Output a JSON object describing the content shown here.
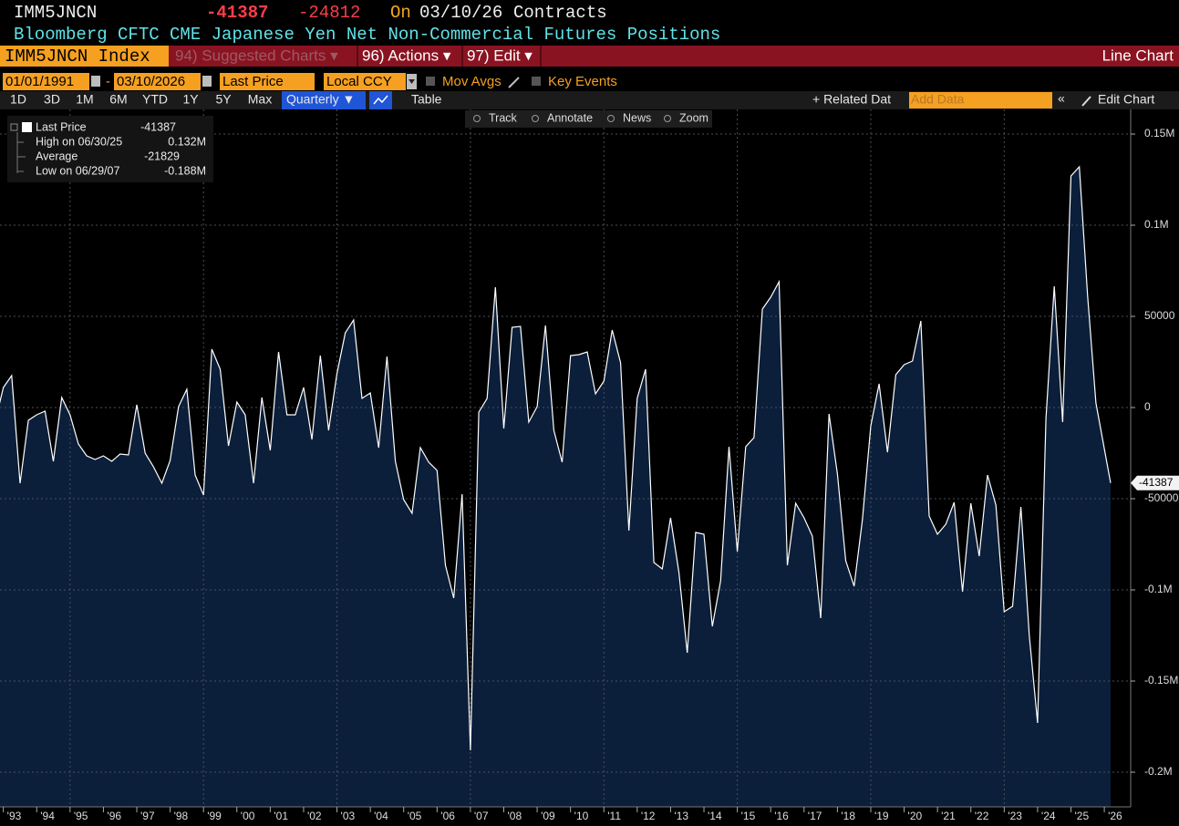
{
  "header": {
    "ticker": "IMM5JNCN",
    "last": "-41387",
    "change": "-24812",
    "on": "On",
    "date": "03/10/26",
    "units": "Contracts",
    "description": "Bloomberg CFTC CME Japanese Yen Net Non-Commercial Futures Positions"
  },
  "toolbar": {
    "security": "IMM5JNCN Index",
    "suggested": "94) Suggested Charts ▾",
    "actions": "96) Actions ▾",
    "edit": "97) Edit ▾",
    "chart_type": "Line Chart"
  },
  "controls": {
    "start": "01/01/1991",
    "dash": "-",
    "end": "03/10/2026",
    "field": "Last Price",
    "currency": "Local CCY",
    "mov_avgs": "Mov Avgs",
    "key_events": "Key Events"
  },
  "ranges": [
    "1D",
    "3D",
    "1M",
    "6M",
    "YTD",
    "1Y",
    "5Y",
    "Max"
  ],
  "frequency": "Quarterly ▼",
  "table": "Table",
  "related": "+ Related Dat",
  "add_data": "Add Data",
  "collapse": "«",
  "edit_chart": "Edit Chart",
  "tools": [
    "Track",
    "Annotate",
    "News",
    "Zoom"
  ],
  "chart_data": {
    "type": "area",
    "legend_stats": [
      {
        "label": "High on 06/30/25",
        "value": "0.132M"
      },
      {
        "label": "Average",
        "value": "-21829"
      },
      {
        "label": "Low on 06/29/07",
        "value": "-0.188M"
      }
    ],
    "legend_last": "-41387",
    "x": [
      1992.75,
      1993,
      1993.25,
      1993.5,
      1993.75,
      1994,
      1994.25,
      1994.5,
      1994.75,
      1995,
      1995.25,
      1995.5,
      1995.75,
      1996,
      1996.25,
      1996.5,
      1996.75,
      1997,
      1997.25,
      1997.5,
      1997.75,
      1998,
      1998.25,
      1998.5,
      1998.75,
      1999,
      1999.25,
      1999.5,
      1999.75,
      2000,
      2000.25,
      2000.5,
      2000.75,
      2001,
      2001.25,
      2001.5,
      2001.75,
      2002,
      2002.25,
      2002.5,
      2002.75,
      2003,
      2003.25,
      2003.5,
      2003.75,
      2004,
      2004.25,
      2004.5,
      2004.75,
      2005,
      2005.25,
      2005.5,
      2005.75,
      2006,
      2006.25,
      2006.5,
      2006.75,
      2007,
      2007.25,
      2007.5,
      2007.75,
      2008,
      2008.25,
      2008.5,
      2008.75,
      2009,
      2009.25,
      2009.5,
      2009.75,
      2010,
      2010.25,
      2010.5,
      2010.75,
      2011,
      2011.25,
      2011.5,
      2011.75,
      2012,
      2012.25,
      2012.5,
      2012.75,
      2013,
      2013.25,
      2013.5,
      2013.75,
      2014,
      2014.25,
      2014.5,
      2014.75,
      2015,
      2015.25,
      2015.5,
      2015.75,
      2016,
      2016.25,
      2016.5,
      2016.75,
      2017,
      2017.25,
      2017.5,
      2017.75,
      2018,
      2018.25,
      2018.5,
      2018.75,
      2019,
      2019.25,
      2019.5,
      2019.75,
      2020,
      2020.25,
      2020.5,
      2020.75,
      2021,
      2021.25,
      2021.5,
      2021.75,
      2022,
      2022.25,
      2022.5,
      2022.75,
      2023,
      2023.25,
      2023.5,
      2023.75,
      2024,
      2024.25,
      2024.5,
      2024.75,
      2025,
      2025.25,
      2025.5,
      2025.75,
      2026.19
    ],
    "series": [
      {
        "name": "Last Price",
        "color": "#ffffff",
        "fill": "#0b1f3b",
        "values": [
          -8000,
          11000,
          17500,
          -41500,
          -7000,
          -4000,
          -2000,
          -29500,
          5500,
          -4000,
          -20000,
          -26500,
          -28500,
          -26500,
          -29500,
          -25500,
          -26000,
          1500,
          -25000,
          -32500,
          -41500,
          -29000,
          500,
          10000,
          -37000,
          -48000,
          32000,
          21000,
          -21000,
          3000,
          -4000,
          -41500,
          5500,
          -23500,
          30500,
          -4000,
          -4000,
          11000,
          -17500,
          28500,
          -12500,
          18500,
          41000,
          48000,
          5000,
          8000,
          -22000,
          28000,
          -29500,
          -50500,
          -58000,
          -22000,
          -30000,
          -34500,
          -86500,
          -104500,
          -47500,
          -188000,
          -2500,
          5000,
          66000,
          -11500,
          44000,
          44500,
          -8000,
          500,
          45000,
          -12500,
          -30000,
          28500,
          29000,
          30500,
          7500,
          14500,
          42500,
          24500,
          -67500,
          5000,
          21000,
          -85000,
          -88500,
          -60500,
          -90500,
          -134500,
          -68500,
          -69500,
          -120000,
          -95000,
          -21500,
          -79000,
          -21500,
          -16500,
          54000,
          60500,
          69000,
          -86500,
          -52500,
          -60500,
          -70500,
          -115500,
          -3500,
          -36500,
          -84000,
          -98000,
          -61500,
          -10000,
          13000,
          -24500,
          18000,
          23500,
          25500,
          47500,
          -59500,
          -69500,
          -64000,
          -52000,
          -101000,
          -52500,
          -81500,
          -37000,
          -53500,
          -112000,
          -109000,
          -54500,
          -125000,
          -173000,
          -6000,
          66500,
          -8000,
          127000,
          132000,
          61000,
          2500,
          -41387
        ]
      }
    ],
    "xlim": [
      1992.9,
      2026.79
    ],
    "xticks": [
      {
        "value": 1993,
        "label": "'93"
      },
      {
        "value": 1994,
        "label": "'94"
      },
      {
        "value": 1995,
        "label": "'95"
      },
      {
        "value": 1996,
        "label": "'96"
      },
      {
        "value": 1997,
        "label": "'97"
      },
      {
        "value": 1998,
        "label": "'98"
      },
      {
        "value": 1999,
        "label": "'99"
      },
      {
        "value": 2000,
        "label": "'00"
      },
      {
        "value": 2001,
        "label": "'01"
      },
      {
        "value": 2002,
        "label": "'02"
      },
      {
        "value": 2003,
        "label": "'03"
      },
      {
        "value": 2004,
        "label": "'04"
      },
      {
        "value": 2005,
        "label": "'05"
      },
      {
        "value": 2006,
        "label": "'06"
      },
      {
        "value": 2007,
        "label": "'07"
      },
      {
        "value": 2008,
        "label": "'08"
      },
      {
        "value": 2009,
        "label": "'09"
      },
      {
        "value": 2010,
        "label": "'10"
      },
      {
        "value": 2011,
        "label": "'11"
      },
      {
        "value": 2012,
        "label": "'12"
      },
      {
        "value": 2013,
        "label": "'13"
      },
      {
        "value": 2014,
        "label": "'14"
      },
      {
        "value": 2015,
        "label": "'15"
      },
      {
        "value": 2016,
        "label": "'16"
      },
      {
        "value": 2017,
        "label": "'17"
      },
      {
        "value": 2018,
        "label": "'18"
      },
      {
        "value": 2019,
        "label": "'19"
      },
      {
        "value": 2020,
        "label": "'20"
      },
      {
        "value": 2021,
        "label": "'21"
      },
      {
        "value": 2022,
        "label": "'22"
      },
      {
        "value": 2023,
        "label": "'23"
      },
      {
        "value": 2024,
        "label": "'24"
      },
      {
        "value": 2025,
        "label": "'25"
      },
      {
        "value": 2026,
        "label": "'26"
      }
    ],
    "ylim": [
      -219000,
      163500
    ],
    "yticks": [
      {
        "value": 150000,
        "label": "0.15M"
      },
      {
        "value": 100000,
        "label": "0.1M"
      },
      50000,
      0,
      -50000,
      {
        "value": -100000,
        "label": "-0.1M"
      },
      {
        "value": -150000,
        "label": "-0.15M"
      },
      {
        "value": -200000,
        "label": "-0.2M"
      }
    ],
    "grid": true
  }
}
